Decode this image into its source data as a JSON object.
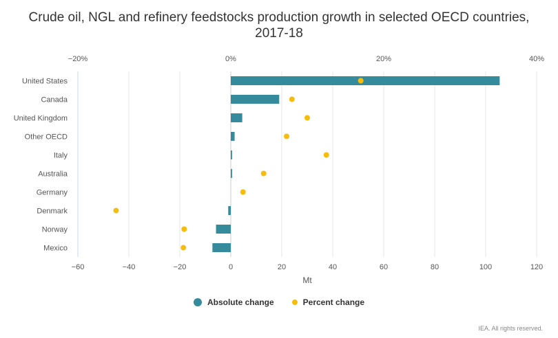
{
  "title": {
    "line1": "Crude oil, NGL and refinery feedstocks production growth in selected OECD countries,",
    "line2": "2017-18"
  },
  "credit": "IEA. All rights reserved.",
  "colors": {
    "bar": "#358a9b",
    "dot": "#f7bd0c",
    "grid": "#e6e6e6",
    "zero": "#cccccc"
  },
  "legend": {
    "absolute": "Absolute change",
    "percent": "Percent change"
  },
  "chart_data": {
    "type": "bar",
    "orientation": "horizontal",
    "categories": [
      "United States",
      "Canada",
      "United Kingdom",
      "Other OECD",
      "Italy",
      "Australia",
      "Germany",
      "Denmark",
      "Norway",
      "Mexico"
    ],
    "series": [
      {
        "name": "Absolute change",
        "type": "bar",
        "axis": "bottom",
        "values": [
          105.5,
          19,
          4.5,
          1.5,
          0.5,
          0.5,
          0,
          -1,
          -5.8,
          -7.2
        ]
      },
      {
        "name": "Percent change",
        "type": "scatter",
        "axis": "top",
        "values": [
          17,
          8,
          10,
          7.3,
          12.5,
          4.3,
          1.6,
          -15,
          -6.1,
          -6.2
        ]
      }
    ],
    "x_bottom": {
      "label": "Mt",
      "min": -60,
      "max": 120,
      "ticks": [
        -60,
        -40,
        -20,
        0,
        20,
        40,
        60,
        80,
        100,
        120
      ]
    },
    "x_top": {
      "label": "",
      "min": -20,
      "max": 40,
      "ticks": [
        -20,
        0,
        20,
        40
      ],
      "tick_labels": [
        "−20%",
        "0%",
        "20%",
        "40%"
      ]
    },
    "bottom_tick_labels": [
      "−60",
      "−40",
      "−20",
      "0",
      "20",
      "40",
      "60",
      "80",
      "100",
      "120"
    ],
    "grid": true,
    "legend_position": "bottom-center"
  }
}
